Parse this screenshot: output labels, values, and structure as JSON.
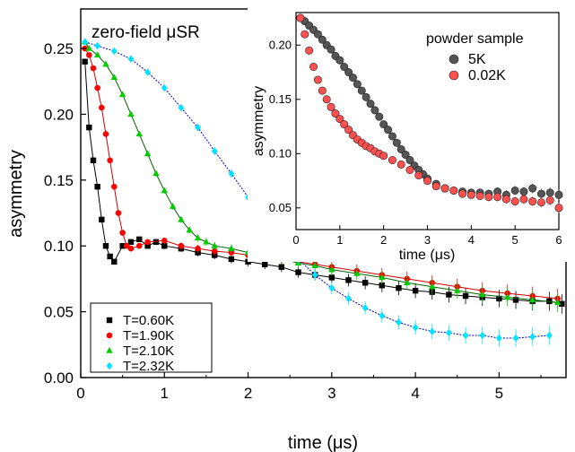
{
  "chart_data": [
    {
      "type": "scatter",
      "annotation": "zero-field μSR",
      "xlabel": "time (μs)",
      "ylabel": "asymmetry",
      "xlim": [
        0,
        5.8
      ],
      "ylim": [
        0,
        0.28
      ],
      "x_ticks": [
        "0",
        "1",
        "2",
        "3",
        "4",
        "5"
      ],
      "y_ticks": [
        "0.00",
        "0.05",
        "0.10",
        "0.15",
        "0.20",
        "0.25"
      ],
      "legend_position": "bottom-left",
      "grid": false,
      "series": [
        {
          "name": "T=0.60K",
          "marker": "square",
          "color": "#000000",
          "x": [
            0.05,
            0.1,
            0.15,
            0.2,
            0.25,
            0.3,
            0.35,
            0.4,
            0.5,
            0.6,
            0.7,
            0.8,
            0.9,
            1.0,
            1.2,
            1.4,
            1.6,
            1.8,
            2.0,
            2.2,
            2.4,
            2.6,
            2.8,
            3.0,
            3.2,
            3.4,
            3.6,
            3.8,
            4.0,
            4.2,
            4.4,
            4.6,
            4.8,
            5.0,
            5.2,
            5.4,
            5.6,
            5.75
          ],
          "y": [
            0.24,
            0.19,
            0.165,
            0.145,
            0.12,
            0.1,
            0.092,
            0.088,
            0.1,
            0.103,
            0.105,
            0.1,
            0.103,
            0.1,
            0.098,
            0.095,
            0.093,
            0.09,
            0.088,
            0.086,
            0.084,
            0.08,
            0.078,
            0.076,
            0.074,
            0.072,
            0.07,
            0.068,
            0.066,
            0.065,
            0.063,
            0.062,
            0.061,
            0.06,
            0.059,
            0.058,
            0.058,
            0.056
          ]
        },
        {
          "name": "T=1.90K",
          "marker": "circle",
          "color": "#ff0000",
          "x": [
            0.05,
            0.1,
            0.15,
            0.2,
            0.25,
            0.3,
            0.35,
            0.4,
            0.45,
            0.5,
            0.55,
            0.6,
            0.7,
            0.8,
            1.0,
            1.2,
            1.4,
            1.6,
            1.8,
            2.0,
            2.2,
            2.4,
            2.6,
            2.8,
            3.0,
            3.3,
            3.6,
            3.9,
            4.2,
            4.5,
            4.8,
            5.1,
            5.4,
            5.7
          ],
          "y": [
            0.25,
            0.245,
            0.235,
            0.22,
            0.205,
            0.185,
            0.165,
            0.145,
            0.125,
            0.11,
            0.1,
            0.098,
            0.1,
            0.103,
            0.104,
            0.1,
            0.098,
            0.096,
            0.095,
            0.093,
            0.092,
            0.09,
            0.088,
            0.086,
            0.084,
            0.081,
            0.078,
            0.075,
            0.072,
            0.069,
            0.066,
            0.064,
            0.062,
            0.06
          ]
        },
        {
          "name": "T=2.10K",
          "marker": "triangle",
          "color": "#00cc00",
          "x": [
            0.05,
            0.1,
            0.2,
            0.3,
            0.4,
            0.5,
            0.6,
            0.7,
            0.8,
            0.9,
            1.0,
            1.1,
            1.2,
            1.3,
            1.4,
            1.5,
            1.6,
            1.8,
            2.0,
            2.2,
            2.4,
            2.6,
            2.8,
            3.0,
            3.3,
            3.6,
            3.9,
            4.2,
            4.5,
            4.8,
            5.1,
            5.4,
            5.7
          ],
          "y": [
            0.255,
            0.25,
            0.245,
            0.238,
            0.228,
            0.215,
            0.2,
            0.185,
            0.17,
            0.155,
            0.142,
            0.13,
            0.12,
            0.112,
            0.106,
            0.103,
            0.1,
            0.098,
            0.095,
            0.092,
            0.09,
            0.087,
            0.085,
            0.082,
            0.079,
            0.076,
            0.072,
            0.069,
            0.066,
            0.063,
            0.061,
            0.059,
            0.057
          ]
        },
        {
          "name": "T=2.32K",
          "marker": "diamond",
          "color": "#00e5ff",
          "x": [
            0.05,
            0.2,
            0.4,
            0.6,
            0.8,
            1.0,
            1.2,
            1.4,
            1.6,
            1.8,
            2.0,
            2.2,
            2.4,
            2.6,
            2.8,
            3.0,
            3.2,
            3.4,
            3.6,
            3.8,
            4.0,
            4.2,
            4.4,
            4.6,
            4.8,
            5.0,
            5.2,
            5.4,
            5.6
          ],
          "y": [
            0.255,
            0.252,
            0.248,
            0.242,
            0.232,
            0.22,
            0.205,
            0.19,
            0.172,
            0.155,
            0.137,
            0.12,
            0.104,
            0.09,
            0.078,
            0.068,
            0.06,
            0.053,
            0.047,
            0.042,
            0.038,
            0.035,
            0.034,
            0.032,
            0.032,
            0.03,
            0.03,
            0.031,
            0.032
          ]
        }
      ]
    },
    {
      "type": "scatter",
      "legend_title": "powder sample",
      "xlabel": "time (μs)",
      "ylabel": "asymmetry",
      "xlim": [
        0,
        6
      ],
      "ylim": [
        0.03,
        0.23
      ],
      "x_ticks": [
        "0",
        "1",
        "2",
        "3",
        "4",
        "5",
        "6"
      ],
      "y_ticks": [
        "0.05",
        "0.10",
        "0.15",
        "0.20"
      ],
      "legend_position": "top-right",
      "series": [
        {
          "name": "5K",
          "marker": "sphere",
          "color": "#555555",
          "x": [
            0.1,
            0.2,
            0.3,
            0.4,
            0.5,
            0.6,
            0.7,
            0.8,
            0.9,
            1.0,
            1.1,
            1.2,
            1.3,
            1.4,
            1.5,
            1.6,
            1.7,
            1.8,
            1.9,
            2.0,
            2.1,
            2.2,
            2.3,
            2.4,
            2.5,
            2.6,
            2.7,
            2.8,
            2.9,
            3.0,
            3.2,
            3.4,
            3.6,
            3.8,
            4.0,
            4.2,
            4.4,
            4.6,
            4.8,
            5.0,
            5.2,
            5.4,
            5.6,
            5.8,
            6.0
          ],
          "y": [
            0.225,
            0.222,
            0.218,
            0.214,
            0.21,
            0.205,
            0.2,
            0.196,
            0.19,
            0.186,
            0.18,
            0.175,
            0.17,
            0.164,
            0.158,
            0.152,
            0.146,
            0.14,
            0.134,
            0.127,
            0.122,
            0.116,
            0.11,
            0.104,
            0.099,
            0.094,
            0.089,
            0.085,
            0.081,
            0.077,
            0.072,
            0.068,
            0.066,
            0.065,
            0.064,
            0.064,
            0.063,
            0.065,
            0.062,
            0.066,
            0.065,
            0.068,
            0.063,
            0.064,
            0.062
          ]
        },
        {
          "name": "0.02K",
          "marker": "sphere",
          "color": "#ff5050",
          "x": [
            0.1,
            0.2,
            0.3,
            0.4,
            0.5,
            0.6,
            0.7,
            0.8,
            0.9,
            1.0,
            1.1,
            1.2,
            1.3,
            1.4,
            1.5,
            1.6,
            1.7,
            1.8,
            1.9,
            2.0,
            2.2,
            2.4,
            2.6,
            2.8,
            3.0,
            3.2,
            3.4,
            3.6,
            3.8,
            4.0,
            4.2,
            4.4,
            4.6,
            4.8,
            5.0,
            5.2,
            5.4,
            5.6,
            5.8,
            6.0
          ],
          "y": [
            0.225,
            0.21,
            0.195,
            0.18,
            0.168,
            0.158,
            0.15,
            0.143,
            0.137,
            0.132,
            0.127,
            0.122,
            0.117,
            0.113,
            0.11,
            0.107,
            0.105,
            0.102,
            0.1,
            0.098,
            0.094,
            0.09,
            0.085,
            0.08,
            0.075,
            0.07,
            0.068,
            0.066,
            0.063,
            0.062,
            0.061,
            0.06,
            0.06,
            0.058,
            0.056,
            0.058,
            0.056,
            0.055,
            0.057,
            0.05
          ]
        }
      ]
    }
  ]
}
